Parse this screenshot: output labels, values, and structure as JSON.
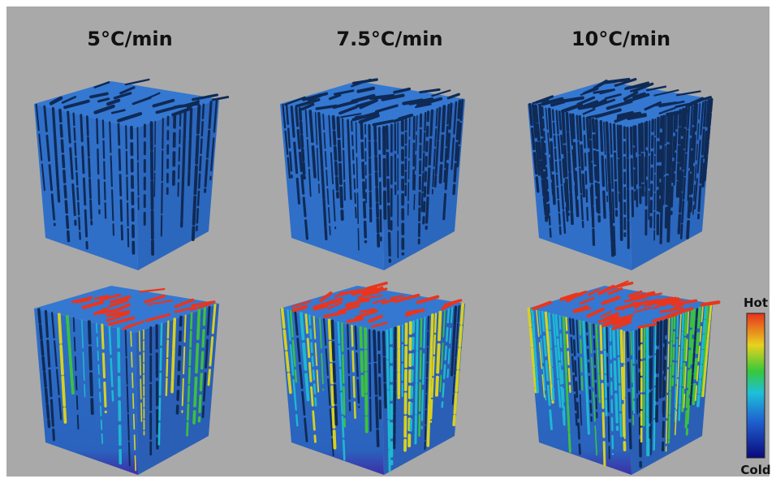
{
  "columns": [
    {
      "title": "5°C/min"
    },
    {
      "title": "7.5°C/min"
    },
    {
      "title": "10°C/min"
    }
  ],
  "colorbar": {
    "top_label": "Hot",
    "bottom_label": "Cold"
  }
}
